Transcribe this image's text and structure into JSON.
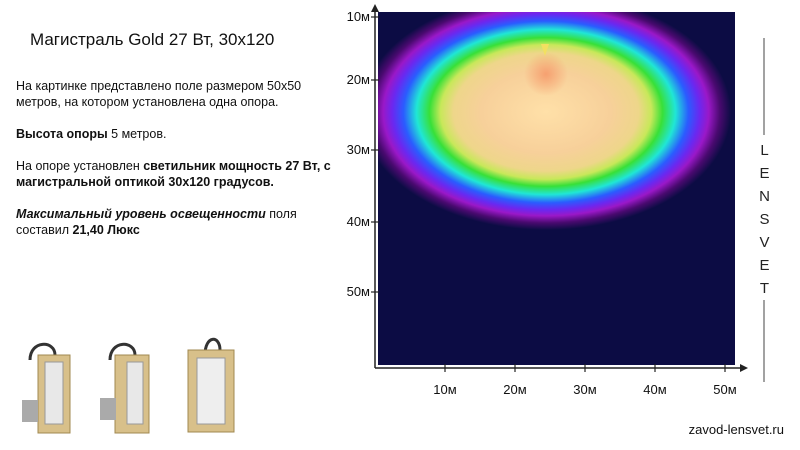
{
  "title": "Магистраль Gold 27 Вт, 30x120",
  "paragraphs": [
    [
      "На картинке представлено поле размером 50x50 метров, на котором установлена одна опора."
    ],
    [
      "Высота опоры",
      " 5 метров."
    ],
    [
      "На опоре установлен ",
      "светильник мощность 27 Вт, с магистральной оптикой 30x120 градусов."
    ],
    [
      "Максимальный уровень освещенности",
      " поля составил ",
      "21,40 Люкс"
    ]
  ],
  "map": {
    "y_labels": [
      "10м",
      "20м",
      "30м",
      "40м",
      "50м"
    ],
    "x_labels": [
      "10м",
      "20м",
      "30м",
      "40м",
      "50м"
    ]
  },
  "brand": "LENSVET",
  "website": "zavod-lensvet.ru"
}
